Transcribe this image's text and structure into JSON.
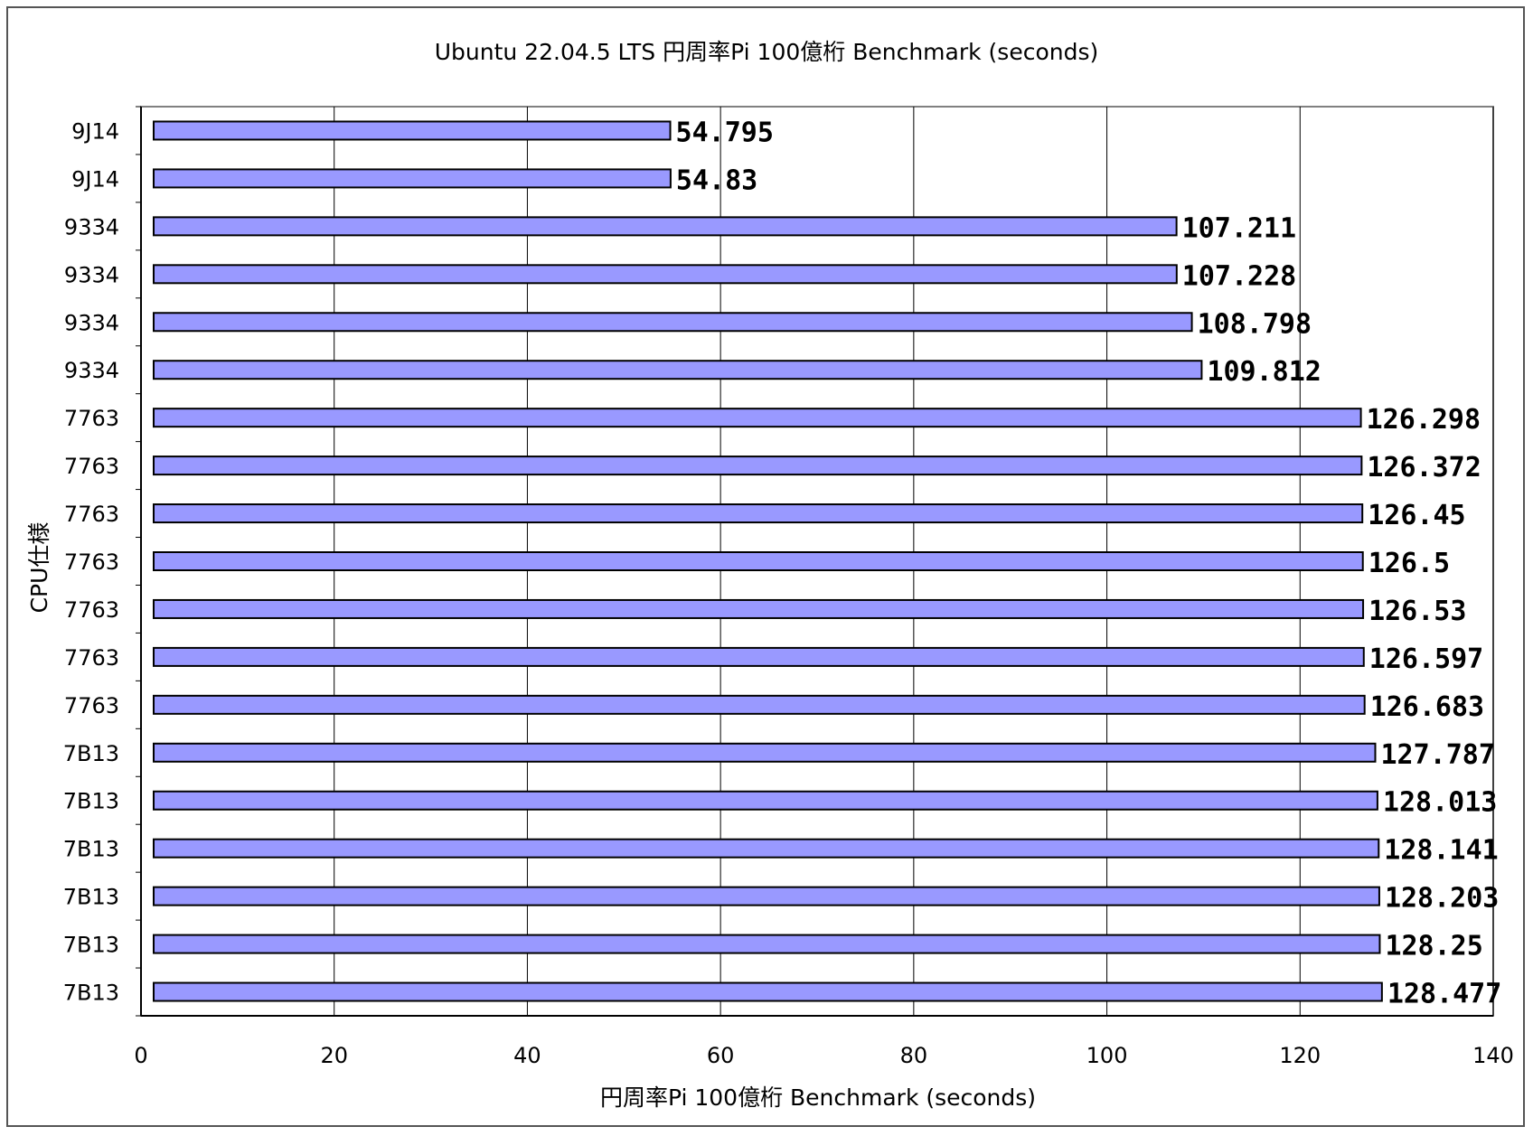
{
  "chart_data": {
    "type": "bar",
    "orientation": "horizontal",
    "title": "Ubuntu 22.04.5 LTS 円周率Pi  100億桁 Benchmark (seconds)",
    "xlabel": "円周率Pi 100億桁 Benchmark (seconds)",
    "ylabel": "CPU仕様",
    "xlim": [
      0,
      140
    ],
    "xticks": [
      0,
      20,
      40,
      60,
      80,
      100,
      120,
      140
    ],
    "grid": "vertical",
    "legend": "none",
    "bar_color": "#9999ff",
    "categories": [
      "9J14",
      "9J14",
      "9334",
      "9334",
      "9334",
      "9334",
      "7763",
      "7763",
      "7763",
      "7763",
      "7763",
      "7763",
      "7763",
      "7B13",
      "7B13",
      "7B13",
      "7B13",
      "7B13",
      "7B13"
    ],
    "values": [
      54.795,
      54.83,
      107.211,
      107.228,
      108.798,
      109.812,
      126.298,
      126.372,
      126.45,
      126.5,
      126.53,
      126.597,
      126.683,
      127.787,
      128.013,
      128.141,
      128.203,
      128.25,
      128.477
    ],
    "data_labels": [
      "54.795",
      "54.83",
      "107.211",
      "107.228",
      "108.798",
      "109.812",
      "126.298",
      "126.372",
      "126.45",
      "126.5",
      "126.53",
      "126.597",
      "126.683",
      "127.787",
      "128.013",
      "128.141",
      "128.203",
      "128.25",
      "128.477"
    ]
  }
}
